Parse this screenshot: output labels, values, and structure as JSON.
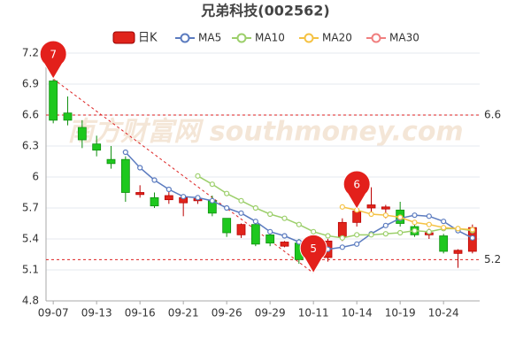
{
  "chart_data": {
    "type": "candlestick",
    "title": "兄弟科技(002562)",
    "watermark": "南方财富网 southmoney.com",
    "categories": [
      "09-07",
      null,
      null,
      "09-13",
      null,
      null,
      "09-16",
      null,
      null,
      "09-21",
      null,
      null,
      "09-26",
      null,
      null,
      "09-29",
      null,
      null,
      "10-11",
      null,
      null,
      "10-14",
      null,
      null,
      "10-19",
      null,
      null,
      "10-24",
      null,
      null
    ],
    "ylim": [
      4.8,
      7.2
    ],
    "yticks": [
      4.8,
      5.1,
      5.4,
      5.7,
      6,
      6.3,
      6.6,
      6.9,
      7.2
    ],
    "grid": true,
    "series": [
      {
        "name": "日K",
        "color": "#e0241b",
        "down_color": "#1ec81e",
        "open": [
          6.93,
          6.62,
          6.48,
          6.32,
          6.17,
          6.17,
          5.83,
          5.8,
          5.78,
          5.75,
          5.77,
          5.77,
          5.6,
          5.44,
          5.54,
          5.44,
          5.33,
          5.36,
          5.3,
          5.22,
          5.42,
          5.56,
          5.7,
          5.69,
          5.68,
          5.52,
          5.44,
          5.43,
          5.26,
          5.28
        ],
        "high": [
          6.95,
          6.78,
          6.55,
          6.4,
          6.3,
          6.2,
          5.92,
          5.85,
          5.88,
          5.82,
          5.82,
          5.82,
          5.6,
          5.55,
          5.56,
          5.47,
          5.38,
          5.4,
          5.35,
          5.4,
          5.6,
          5.69,
          5.9,
          5.73,
          5.76,
          5.55,
          5.5,
          5.45,
          5.3,
          5.54
        ],
        "low": [
          6.52,
          6.5,
          6.28,
          6.2,
          6.08,
          5.76,
          5.8,
          5.7,
          5.74,
          5.62,
          5.74,
          5.62,
          5.42,
          5.41,
          5.33,
          5.33,
          5.32,
          5.16,
          5.07,
          5.18,
          5.38,
          5.52,
          5.66,
          5.6,
          5.52,
          5.42,
          5.4,
          5.26,
          5.12,
          5.26
        ],
        "close": [
          6.55,
          6.55,
          6.36,
          6.26,
          6.13,
          5.85,
          5.85,
          5.72,
          5.82,
          5.8,
          5.79,
          5.65,
          5.46,
          5.54,
          5.35,
          5.36,
          5.37,
          5.2,
          5.2,
          5.38,
          5.56,
          5.67,
          5.73,
          5.71,
          5.55,
          5.44,
          5.46,
          5.28,
          5.29,
          5.51
        ]
      },
      {
        "name": "MA5",
        "color": "#5b7bbf",
        "values": [
          null,
          null,
          null,
          null,
          null,
          6.24,
          6.09,
          5.97,
          5.88,
          5.81,
          5.8,
          5.77,
          5.7,
          5.65,
          5.57,
          5.47,
          5.43,
          5.37,
          5.31,
          5.3,
          5.32,
          5.35,
          5.45,
          5.53,
          5.6,
          5.63,
          5.62,
          5.57,
          5.48,
          5.41
        ]
      },
      {
        "name": "MA10",
        "color": "#9ccf6b",
        "values": [
          null,
          null,
          null,
          null,
          null,
          null,
          null,
          null,
          null,
          null,
          6.01,
          5.93,
          5.84,
          5.77,
          5.7,
          5.64,
          5.6,
          5.54,
          5.47,
          5.43,
          5.41,
          5.44,
          5.44,
          5.45,
          5.46,
          5.48,
          5.47,
          5.5,
          5.5,
          5.48
        ]
      },
      {
        "name": "MA20",
        "color": "#f5c243",
        "values": [
          null,
          null,
          null,
          null,
          null,
          null,
          null,
          null,
          null,
          null,
          null,
          null,
          null,
          null,
          null,
          null,
          null,
          null,
          null,
          null,
          5.71,
          5.68,
          5.64,
          5.63,
          5.61,
          5.56,
          5.54,
          5.51,
          5.5,
          5.49
        ]
      },
      {
        "name": "MA30",
        "color": "#f07f7f",
        "values": [
          null,
          null,
          null,
          null,
          null,
          null,
          null,
          null,
          null,
          null,
          null,
          null,
          null,
          null,
          null,
          null,
          null,
          null,
          null,
          null,
          null,
          null,
          null,
          null,
          null,
          null,
          null,
          null,
          null,
          null
        ]
      }
    ],
    "markers": [
      {
        "label": "7",
        "field": "high",
        "value": 6.95
      },
      {
        "label": "5",
        "field": "low",
        "value": 5.07
      },
      {
        "label": "6",
        "field": "high",
        "value": 5.69
      }
    ],
    "ref_lines": [
      6.6,
      5.2
    ]
  }
}
